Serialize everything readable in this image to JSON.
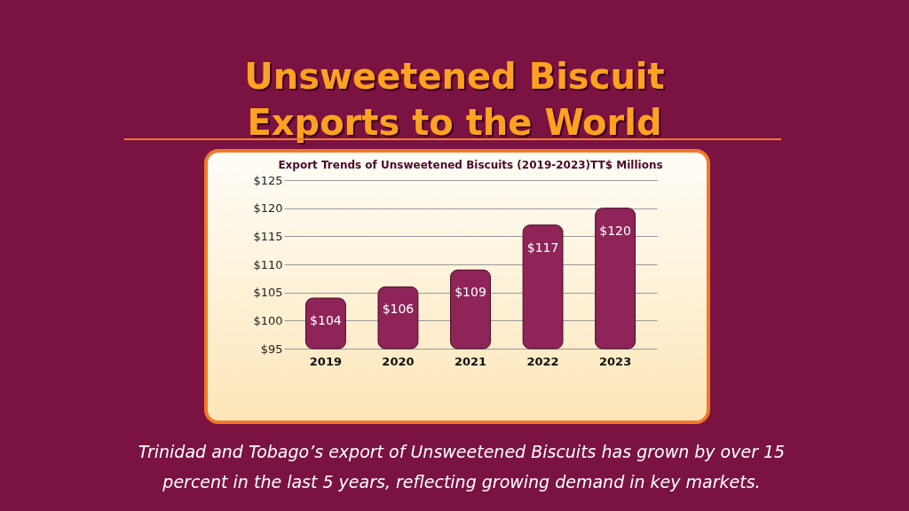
{
  "chart_data": {
    "type": "bar",
    "title": "Unsweetened Biscuit Exports to the World",
    "subtitle": "Export Trends of Unsweetened Biscuits (2019-2023)TT$ Millions",
    "categories": [
      "2019",
      "2020",
      "2021",
      "2022",
      "2023"
    ],
    "values": [
      104,
      106,
      109,
      117,
      120
    ],
    "value_labels": [
      "$104",
      "$106",
      "$109",
      "$117",
      "$120"
    ],
    "color": "#8e2458",
    "ylim": [
      95,
      125
    ],
    "yticks": [
      {
        "value": 95,
        "label": "$95"
      },
      {
        "value": 100,
        "label": "$100"
      },
      {
        "value": 105,
        "label": "$105"
      },
      {
        "value": 110,
        "label": "$110"
      },
      {
        "value": 115,
        "label": "$115"
      },
      {
        "value": 120,
        "label": "$120"
      },
      {
        "value": 125,
        "label": "$125"
      }
    ],
    "grid": "y",
    "annotations": [
      "Trinidad and Tobago’s export of Unsweetened Biscuits has grown by over 15 percent in the last 5 years, reflecting growing demand in key markets."
    ]
  }
}
